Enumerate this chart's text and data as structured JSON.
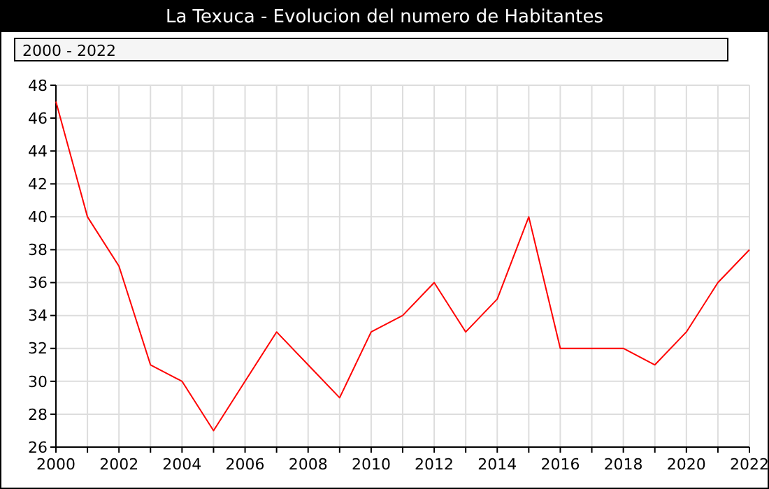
{
  "chart_data": {
    "type": "line",
    "title": "La Texuca - Evolucion del numero de Habitantes",
    "subtitle": "2000 - 2022",
    "x": [
      2000,
      2001,
      2002,
      2003,
      2004,
      2005,
      2006,
      2007,
      2008,
      2009,
      2010,
      2011,
      2012,
      2013,
      2014,
      2015,
      2016,
      2017,
      2018,
      2019,
      2020,
      2021,
      2022
    ],
    "series": [
      {
        "color": "#ff0000",
        "values": [
          47,
          40,
          37,
          31,
          30,
          27,
          30,
          33,
          31,
          29,
          33,
          34,
          36,
          33,
          35,
          40,
          32,
          32,
          32,
          31,
          33,
          36,
          38
        ]
      }
    ],
    "xlim": [
      2000,
      2022
    ],
    "xticks": [
      2000,
      {
        "value": 2001,
        "label": null
      },
      2002,
      {
        "value": 2003,
        "label": null
      },
      2004,
      {
        "value": 2005,
        "label": null
      },
      2006,
      {
        "value": 2007,
        "label": null
      },
      2008,
      {
        "value": 2009,
        "label": null
      },
      2010,
      {
        "value": 2011,
        "label": null
      },
      2012,
      {
        "value": 2013,
        "label": null
      },
      2014,
      {
        "value": 2015,
        "label": null
      },
      2016,
      {
        "value": 2017,
        "label": null
      },
      2018,
      {
        "value": 2019,
        "label": null
      },
      2020,
      {
        "value": 2021,
        "label": null
      },
      2022
    ],
    "ylim": [
      26,
      48
    ],
    "yticks": [
      26,
      28,
      30,
      32,
      34,
      36,
      38,
      40,
      42,
      44,
      46,
      48
    ],
    "grid": true,
    "marker": "none",
    "line_style": "solid"
  }
}
